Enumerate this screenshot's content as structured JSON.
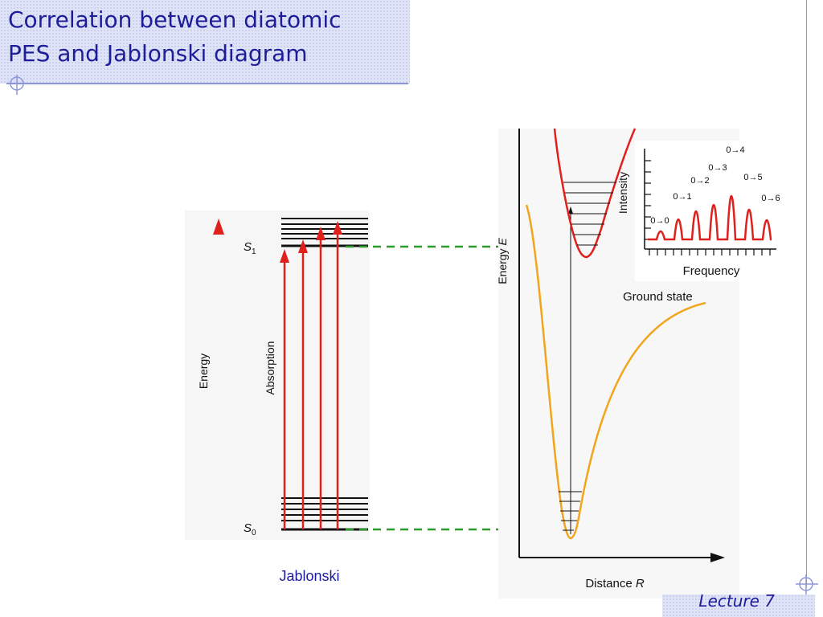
{
  "slide": {
    "title_line1": "Correlation between diatomic",
    "title_line2": "PES and Jablonski diagram",
    "footer": "Lecture 7"
  },
  "jablonski": {
    "caption": "Jablonski",
    "energy_label": "Energy",
    "absorption_label": "Absorption",
    "s1_label": "S",
    "s1_sub": "1",
    "s0_label": "S",
    "s0_sub": "0"
  },
  "pes": {
    "y_axis_label": "Energy",
    "y_axis_symbol": "E",
    "x_axis_label": "Distance",
    "x_axis_symbol": "R",
    "ground_state_label": "Ground state"
  },
  "spectrum": {
    "y_label": "Intensity",
    "x_label": "Frequency",
    "peaks": [
      "0→0",
      "0→1",
      "0→2",
      "0→3",
      "0→4",
      "0→5",
      "0→6"
    ],
    "intensities": [
      0.12,
      0.42,
      0.62,
      0.78,
      1.0,
      0.66,
      0.4
    ]
  },
  "colors": {
    "title_text": "#1d1d9a",
    "arrow_red": "#e0201c",
    "energy_arrow_bottom": "#f07a10",
    "excited_curve": "#e0201c",
    "ground_curve": "#f0a51c",
    "dashed_link": "#2e9a2e"
  }
}
